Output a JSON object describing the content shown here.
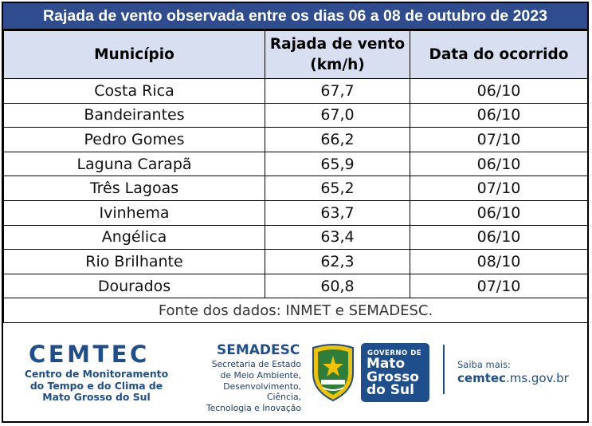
{
  "title": "Rajada de vento observada entre os dias 06 a 08 de outubro de 2023",
  "table": {
    "headers": {
      "municipio": "Município",
      "rajada_line1": "Rajada de vento",
      "rajada_line2": "(km/h)",
      "data": "Data do ocorrido"
    },
    "rows": [
      {
        "municipio": "Costa Rica",
        "rajada": "67,7",
        "data": "06/10"
      },
      {
        "municipio": "Bandeirantes",
        "rajada": "67,0",
        "data": "06/10"
      },
      {
        "municipio": "Pedro Gomes",
        "rajada": "66,2",
        "data": "07/10"
      },
      {
        "municipio": "Laguna Carapã",
        "rajada": "65,9",
        "data": "06/10"
      },
      {
        "municipio": "Três Lagoas",
        "rajada": "65,2",
        "data": "07/10"
      },
      {
        "municipio": "Ivinhema",
        "rajada": "63,7",
        "data": "06/10"
      },
      {
        "municipio": "Angélica",
        "rajada": "63,4",
        "data": "06/10"
      },
      {
        "municipio": "Rio Brilhante",
        "rajada": "62,3",
        "data": "08/10"
      },
      {
        "municipio": "Dourados",
        "rajada": "60,8",
        "data": "07/10"
      }
    ],
    "source": "Fonte dos dados: INMET e SEMADESC."
  },
  "footer": {
    "cemtec": {
      "name": "CEMTEC",
      "line1": "Centro de Monitoramento",
      "line2": "do Tempo e do Clima de",
      "line3": "Mato Grosso do Sul"
    },
    "semadesc": {
      "name": "SEMADESC",
      "line1": "Secretaria de Estado",
      "line2": "de Meio Ambiente,",
      "line3": "Desenvolvimento, Ciência,",
      "line4": "Tecnologia e Inovação"
    },
    "governo": {
      "top": "GOVERNO DE",
      "line1": "Mato",
      "line2": "Grosso",
      "line3": "do Sul"
    },
    "saiba_mais": "Saiba mais:",
    "site_bold": "cemtec",
    "site_rest": ".ms.gov.br"
  },
  "colors": {
    "title_bar": "#2f4d8e",
    "header_bg": "#d8dff0",
    "brand_blue": "#1f4e8c"
  },
  "icons": [
    "state-coat-of-arms-icon"
  ]
}
